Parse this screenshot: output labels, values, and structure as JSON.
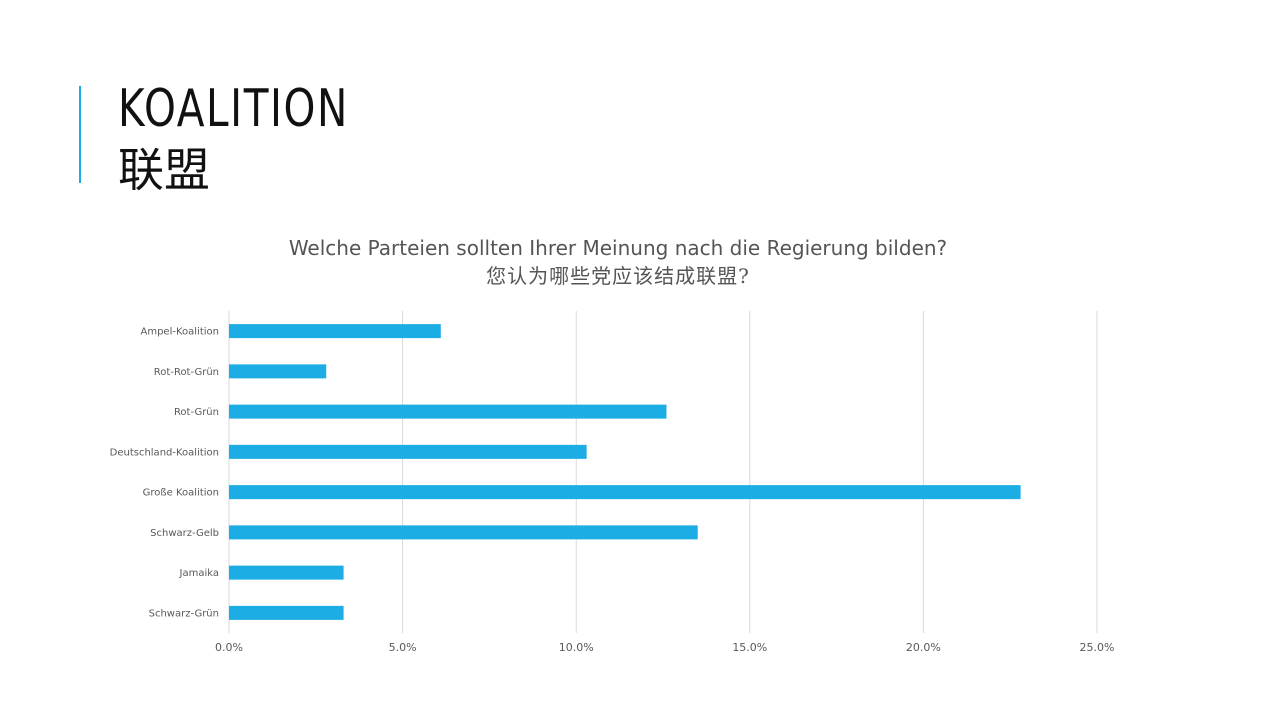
{
  "slide": {
    "title": "KOALITION",
    "subtitle": "联盟"
  },
  "colors": {
    "accent": "#1CADE4",
    "bar": "#1CADE4",
    "grid": "#D9D9D9",
    "text": "#595959"
  },
  "chart_data": {
    "type": "bar",
    "orientation": "horizontal",
    "title": "Welche Parteien sollten Ihrer Meinung nach die Regierung bilden?",
    "subtitle": "您认为哪些党应该结成联盟?",
    "categories": [
      "Ampel-Koalition",
      "Rot-Rot-Grün",
      "Rot-Grün",
      "Deutschland-Koalition",
      "Große Koalition",
      "Schwarz-Gelb",
      "Jamaika",
      "Schwarz-Grün"
    ],
    "values": [
      6.1,
      2.8,
      12.6,
      10.3,
      22.8,
      13.5,
      3.3,
      3.3
    ],
    "xlim": [
      0,
      25
    ],
    "xticks": [
      0,
      5,
      10,
      15,
      20,
      25
    ],
    "xtick_labels": [
      "0.0%",
      "5.0%",
      "10.0%",
      "15.0%",
      "20.0%",
      "25.0%"
    ],
    "grid": "vertical",
    "legend": "none"
  }
}
